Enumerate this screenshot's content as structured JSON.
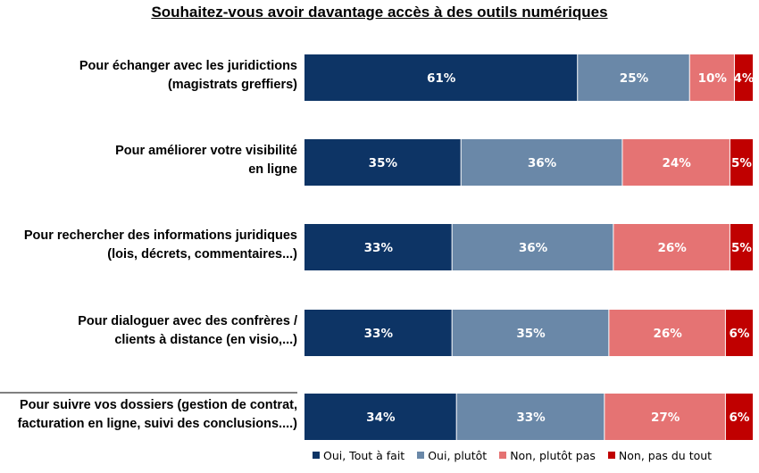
{
  "chart_data": {
    "type": "bar",
    "orientation": "horizontal",
    "stacked": true,
    "normalized": true,
    "title": "Souhaitez-vous avoir davantage accès à des outils numériques",
    "categories": [
      [
        "Pour échanger avec les juridictions",
        "(magistrats greffiers)"
      ],
      [
        "Pour améliorer votre visibilité",
        "en ligne"
      ],
      [
        "Pour rechercher des informations juridiques",
        "(lois, décrets, commentaires...)"
      ],
      [
        "Pour dialoguer avec des confrères /",
        "clients à distance (en visio,...)"
      ],
      [
        "Pour suivre vos dossiers (gestion de contrat,",
        "facturation en ligne, suivi des conclusions....)"
      ]
    ],
    "series": [
      {
        "name": "Oui, Tout à fait",
        "color": "#0d3465",
        "values": [
          61,
          35,
          33,
          33,
          34
        ]
      },
      {
        "name": "Oui, plutôt",
        "color": "#6a88a8",
        "values": [
          25,
          36,
          36,
          35,
          33
        ]
      },
      {
        "name": "Non, plutôt pas",
        "color": "#e57373",
        "values": [
          10,
          24,
          26,
          26,
          27
        ]
      },
      {
        "name": "Non, pas du tout",
        "color": "#c00000",
        "values": [
          4,
          5,
          5,
          6,
          6
        ]
      }
    ],
    "value_suffix": "%",
    "legend_position": "bottom",
    "grid": false
  }
}
